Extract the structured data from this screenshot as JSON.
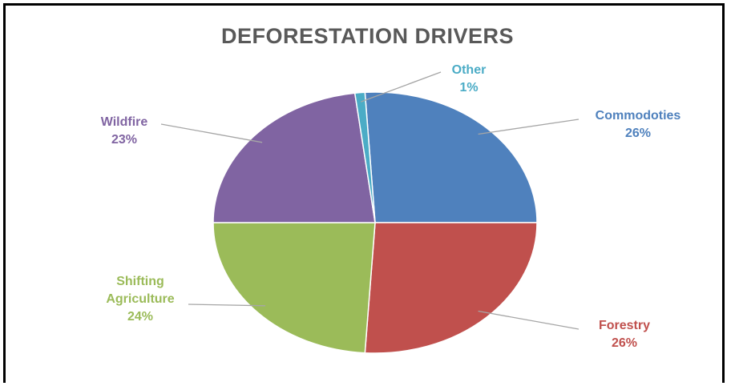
{
  "chart_data": {
    "type": "pie",
    "title": "DEFORESTATION DRIVERS",
    "slices": [
      {
        "label": "Commodoties",
        "value": 26,
        "value_label": "26%",
        "color": "#4F81BD"
      },
      {
        "label": "Forestry",
        "value": 26,
        "value_label": "26%",
        "color": "#C0504D"
      },
      {
        "label": "Shifting Agriculture",
        "value": 24,
        "value_label": "24%",
        "color": "#9BBB59"
      },
      {
        "label": "Wildfire",
        "value": 23,
        "value_label": "23%",
        "color": "#8064A2"
      },
      {
        "label": "Other",
        "value": 1,
        "value_label": "1%",
        "color": "#4BACC6"
      }
    ]
  }
}
